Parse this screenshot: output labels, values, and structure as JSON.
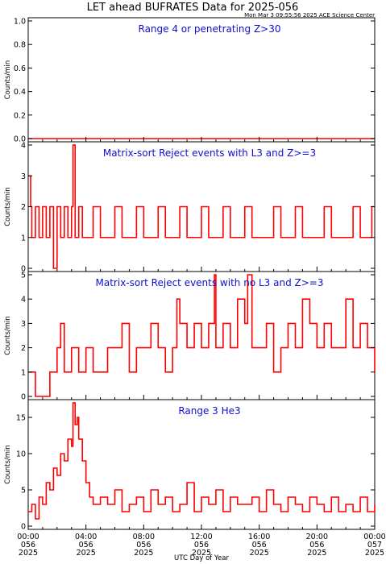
{
  "header": {
    "title": "LET ahead BUFRATES Data for 2025-056",
    "timestamp": "Mon Mar  3 09:55:56 2025 ACE Science Center"
  },
  "colors": {
    "trace": "#ff0000",
    "panel_label": "#1010d0",
    "axes": "#000000"
  },
  "xaxis": {
    "label": "UTC Day of Year",
    "ticks": [
      {
        "time": "00:00",
        "doy": "056",
        "year": "2025"
      },
      {
        "time": "04:00",
        "doy": "056",
        "year": "2025"
      },
      {
        "time": "08:00",
        "doy": "056",
        "year": "2025"
      },
      {
        "time": "12:00",
        "doy": "056",
        "year": "2025"
      },
      {
        "time": "16:00",
        "doy": "056",
        "year": "2025"
      },
      {
        "time": "20:00",
        "doy": "056",
        "year": "2025"
      },
      {
        "time": "00:00",
        "doy": "057",
        "year": "2025"
      }
    ]
  },
  "chart_data": [
    {
      "type": "line",
      "title": "Range 4 or  penetrating Z>30",
      "ylabel": "Counts/min",
      "ylim": [
        0,
        1.0
      ],
      "yticks": [
        "0.0",
        "0.2",
        "0.4",
        "0.6",
        "0.8",
        "1.0"
      ],
      "xlim_hours": [
        0,
        24
      ],
      "series": [
        {
          "x": [
            0,
            24
          ],
          "y": [
            0,
            0
          ]
        }
      ]
    },
    {
      "type": "line",
      "title": "Matrix-sort Reject events with L3 and Z>=3",
      "ylabel": "Counts/min",
      "ylim": [
        0,
        4
      ],
      "yticks": [
        "0",
        "1",
        "2",
        "3",
        "4"
      ],
      "xlim_hours": [
        0,
        24
      ],
      "series": [
        {
          "x": [
            0,
            0.17,
            0.25,
            0.5,
            0.75,
            1,
            1.25,
            1.5,
            1.75,
            2,
            2.25,
            2.5,
            2.75,
            3,
            3.1,
            3.25,
            3.5,
            3.75,
            4,
            4.5,
            5,
            5.5,
            6,
            6.5,
            7,
            7.5,
            8,
            8.5,
            9,
            9.5,
            10,
            10.5,
            11,
            11.5,
            12,
            12.5,
            13,
            13.5,
            14,
            14.5,
            15,
            15.5,
            16,
            16.5,
            17,
            17.5,
            18,
            18.5,
            19,
            19.5,
            20,
            20.5,
            21,
            21.5,
            22,
            22.5,
            23,
            23.5,
            23.8,
            24
          ],
          "y": [
            3,
            2,
            1,
            2,
            1,
            2,
            1,
            2,
            0,
            2,
            1,
            2,
            1,
            2,
            4,
            1,
            2,
            1,
            1,
            2,
            1,
            1,
            2,
            1,
            1,
            2,
            1,
            1,
            2,
            1,
            1,
            2,
            1,
            1,
            2,
            1,
            1,
            2,
            1,
            1,
            2,
            1,
            1,
            1,
            2,
            1,
            1,
            2,
            1,
            1,
            1,
            2,
            1,
            1,
            1,
            2,
            1,
            1,
            2,
            2
          ]
        }
      ]
    },
    {
      "type": "line",
      "title": "Matrix-sort Reject events with no L3 and Z>=3",
      "ylabel": "Counts/min",
      "ylim": [
        0,
        5
      ],
      "yticks": [
        "0",
        "1",
        "2",
        "3",
        "4",
        "5"
      ],
      "xlim_hours": [
        0,
        24
      ],
      "series": [
        {
          "x": [
            0,
            0.25,
            0.5,
            1,
            1.5,
            2,
            2.25,
            2.5,
            3,
            3.5,
            4,
            4.5,
            5,
            5.5,
            6,
            6.5,
            7,
            7.5,
            8,
            8.5,
            9,
            9.5,
            10,
            10.3,
            10.5,
            11,
            11.5,
            12,
            12.5,
            12.9,
            13,
            13.5,
            14,
            14.5,
            15,
            15.2,
            15.5,
            16,
            16.5,
            17,
            17.5,
            18,
            18.5,
            19,
            19.5,
            20,
            20.5,
            21,
            21.5,
            22,
            22.5,
            23,
            23.5,
            24
          ],
          "y": [
            1,
            1,
            0,
            0,
            1,
            2,
            3,
            1,
            2,
            1,
            2,
            1,
            1,
            2,
            2,
            3,
            1,
            2,
            2,
            3,
            2,
            1,
            2,
            4,
            3,
            2,
            3,
            2,
            3,
            5,
            2,
            3,
            2,
            4,
            3,
            5,
            2,
            2,
            3,
            1,
            2,
            3,
            2,
            4,
            3,
            2,
            3,
            2,
            2,
            4,
            2,
            3,
            2,
            1
          ]
        }
      ]
    },
    {
      "type": "line",
      "title": "Range 3 He3",
      "ylabel": "Counts/min",
      "ylim": [
        0,
        17
      ],
      "yticks": [
        "0",
        "5",
        "10",
        "15"
      ],
      "xlim_hours": [
        0,
        24
      ],
      "series": [
        {
          "x": [
            0,
            0.25,
            0.5,
            0.75,
            1,
            1.25,
            1.5,
            1.75,
            2,
            2.25,
            2.5,
            2.75,
            3,
            3.1,
            3.25,
            3.4,
            3.5,
            3.75,
            4,
            4.25,
            4.5,
            5,
            5.5,
            6,
            6.5,
            7,
            7.5,
            8,
            8.5,
            9,
            9.5,
            10,
            10.5,
            11,
            11.5,
            12,
            12.5,
            13,
            13.5,
            14,
            14.5,
            15,
            15.5,
            16,
            16.5,
            17,
            17.5,
            18,
            18.5,
            19,
            19.5,
            20,
            20.5,
            21,
            21.5,
            22,
            22.5,
            23,
            23.5,
            24
          ],
          "y": [
            2,
            3,
            1,
            4,
            3,
            6,
            5,
            8,
            7,
            10,
            9,
            12,
            11,
            17,
            14,
            15,
            12,
            9,
            6,
            4,
            3,
            4,
            3,
            5,
            2,
            3,
            4,
            2,
            5,
            3,
            4,
            2,
            3,
            6,
            2,
            4,
            3,
            5,
            2,
            4,
            3,
            3,
            4,
            2,
            5,
            3,
            2,
            4,
            3,
            2,
            4,
            3,
            2,
            4,
            2,
            3,
            2,
            4,
            2,
            3
          ]
        }
      ]
    }
  ]
}
